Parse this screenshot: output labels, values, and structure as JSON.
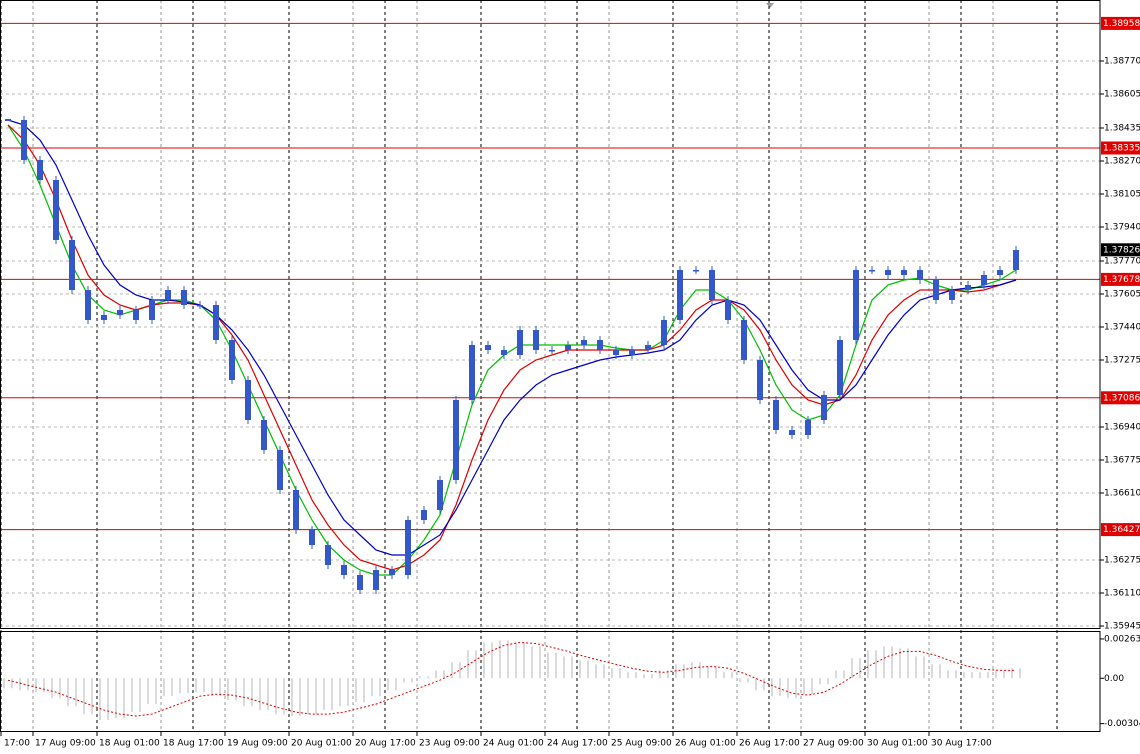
{
  "chart_data": [
    {
      "type": "candlestick",
      "color": "#3458c8",
      "values": [
        1.38475,
        1.38275,
        1.38175,
        1.37875,
        1.37625,
        1.37475,
        1.375,
        1.37525,
        1.37475,
        1.37575,
        1.37625,
        1.3755,
        1.3755,
        1.37375,
        1.37175,
        1.36975,
        1.36825,
        1.36625,
        1.36425,
        1.3635,
        1.3625,
        1.362,
        1.36125,
        1.36225,
        1.362,
        1.36475,
        1.36525,
        1.36675,
        1.37075,
        1.3735,
        1.37325,
        1.373,
        1.37425,
        1.37325,
        1.37325,
        1.3735,
        1.37375,
        1.37325,
        1.373,
        1.37325,
        1.3735,
        1.37475,
        1.37725,
        1.37725,
        1.37575,
        1.37475,
        1.37275,
        1.37075,
        1.36925,
        1.369,
        1.36975,
        1.371,
        1.37375,
        1.37725,
        1.37725,
        1.377,
        1.37725,
        1.37675,
        1.37575,
        1.37625,
        1.3765,
        1.377,
        1.37725,
        1.37825
      ],
      "series": [
        {
          "color": "#00c000",
          "values": [
            1.3845,
            1.38325,
            1.3815,
            1.3795,
            1.3775,
            1.376,
            1.37525,
            1.375,
            1.37525,
            1.3755,
            1.37575,
            1.37575,
            1.3755,
            1.37475,
            1.37325,
            1.3715,
            1.36975,
            1.368,
            1.36625,
            1.36475,
            1.3635,
            1.36275,
            1.36225,
            1.362,
            1.362,
            1.36275,
            1.36375,
            1.365,
            1.36775,
            1.3705,
            1.37225,
            1.373,
            1.3735,
            1.3735,
            1.3735,
            1.3735,
            1.3735,
            1.3735,
            1.37335,
            1.37325,
            1.37325,
            1.37375,
            1.37525,
            1.37625,
            1.37625,
            1.37575,
            1.37475,
            1.37325,
            1.3715,
            1.37025,
            1.36975,
            1.37,
            1.371,
            1.3735,
            1.37575,
            1.3765,
            1.37675,
            1.37685,
            1.3765,
            1.37625,
            1.37625,
            1.3765,
            1.37675,
            1.37725
          ]
        },
        {
          "color": "#e00000",
          "values": [
            1.3845,
            1.38375,
            1.3825,
            1.38075,
            1.37875,
            1.377,
            1.376,
            1.3755,
            1.37525,
            1.3755,
            1.3756,
            1.3756,
            1.3755,
            1.375,
            1.374,
            1.37275,
            1.371,
            1.36925,
            1.3675,
            1.36575,
            1.3645,
            1.3635,
            1.36275,
            1.3625,
            1.36225,
            1.3625,
            1.363,
            1.36375,
            1.3655,
            1.36775,
            1.36975,
            1.37125,
            1.37225,
            1.37275,
            1.373,
            1.37325,
            1.37325,
            1.37325,
            1.37325,
            1.37325,
            1.37325,
            1.3735,
            1.37425,
            1.37525,
            1.37575,
            1.37575,
            1.37525,
            1.37425,
            1.37275,
            1.3715,
            1.37075,
            1.3705,
            1.37075,
            1.372,
            1.37375,
            1.375,
            1.37575,
            1.37625,
            1.37625,
            1.37625,
            1.37615,
            1.37625,
            1.3765,
            1.37675
          ]
        },
        {
          "color": "#0000c8",
          "values": [
            1.38475,
            1.3845,
            1.38375,
            1.3825,
            1.38075,
            1.379,
            1.3775,
            1.3765,
            1.376,
            1.37575,
            1.37575,
            1.37565,
            1.3755,
            1.375,
            1.37425,
            1.37325,
            1.372,
            1.3705,
            1.369,
            1.3675,
            1.366,
            1.36475,
            1.364,
            1.36325,
            1.363,
            1.363,
            1.3635,
            1.364,
            1.36525,
            1.36675,
            1.36825,
            1.36975,
            1.37075,
            1.3715,
            1.372,
            1.37225,
            1.3725,
            1.37275,
            1.3729,
            1.373,
            1.3731,
            1.37325,
            1.37375,
            1.37475,
            1.3755,
            1.37575,
            1.3755,
            1.37475,
            1.3735,
            1.37225,
            1.37125,
            1.37075,
            1.37075,
            1.3715,
            1.37275,
            1.374,
            1.375,
            1.37575,
            1.376,
            1.37625,
            1.37635,
            1.3764,
            1.3765,
            1.37675
          ]
        }
      ],
      "levels": [
        1.38958,
        1.38335,
        1.37678,
        1.37086,
        1.36427
      ],
      "level_color": "#e00000",
      "current_price": 1.37826,
      "ylim": [
        1.35935,
        1.39075
      ],
      "yticks": [
        {
          "value": 1.3877,
          "label": "1.38770"
        },
        1.38605,
        1.38435,
        {
          "value": 1.3827,
          "label": "1.38270"
        },
        1.38105,
        {
          "value": 1.3794,
          "label": "1.37940"
        },
        {
          "value": 1.3777,
          "label": "1.37770"
        },
        1.37605,
        {
          "value": 1.3744,
          "label": "1.37440"
        },
        1.37275,
        {
          "value": 1.3694,
          "label": "1.36940"
        },
        1.36775,
        {
          "value": 1.3661,
          "label": "1.36610"
        },
        1.36275,
        {
          "value": 1.3611,
          "label": "1.36110"
        },
        1.35945
      ],
      "grid": true,
      "xlabels": [
        "17:00",
        "17 Aug 09:00",
        "18 Aug 01:00",
        "18 Aug 17:00",
        "19 Aug 09:00",
        "20 Aug 01:00",
        "20 Aug 17:00",
        "23 Aug 09:00",
        "24 Aug 01:00",
        "24 Aug 17:00",
        "25 Aug 09:00",
        "26 Aug 01:00",
        "26 Aug 17:00",
        "27 Aug 09:00",
        "30 Aug 01:00",
        "30 Aug 17:00"
      ]
    },
    {
      "type": "oscillator",
      "series": [
        {
          "color": "#b4b4b4",
          "values": [
            -0.00067,
            -0.0008,
            -0.00093,
            -0.00133,
            -0.00187,
            -0.0024,
            -0.0028,
            -0.00267,
            -0.00227,
            -0.00173,
            -0.0012,
            -0.001,
            -0.00093,
            -0.0012,
            -0.00147,
            -0.00187,
            -0.00213,
            -0.0024,
            -0.00253,
            -0.0024,
            -0.00213,
            -0.00187,
            -0.0016,
            -0.0012,
            -0.0008,
            -0.00027,
            0.00013,
            0.00053,
            0.00107,
            0.00187,
            0.0024,
            0.00253,
            0.0024,
            0.00213,
            0.00173,
            0.00147,
            0.0012,
            0.00093,
            0.00067,
            0.0004,
            0.00027,
            0.00053,
            0.00093,
            0.00107,
            0.0008,
            0.0004,
            -0.00027,
            -0.0008,
            -0.0012,
            -0.00133,
            -0.00107,
            -0.0004,
            0.00053,
            0.00133,
            0.00187,
            0.00213,
            0.002,
            0.00147,
            0.00093,
            0.00053,
            0.0004,
            0.0004,
            0.00053,
            0.00067
          ]
        },
        {
          "color": "#e00000",
          "values": [
            -0.00013,
            -0.0004,
            -0.00067,
            -0.00093,
            -0.00133,
            -0.00173,
            -0.00213,
            -0.0024,
            -0.00253,
            -0.0024,
            -0.002,
            -0.0016,
            -0.0012,
            -0.00107,
            -0.00113,
            -0.00133,
            -0.00167,
            -0.002,
            -0.00227,
            -0.0024,
            -0.0024,
            -0.00227,
            -0.002,
            -0.00173,
            -0.00133,
            -0.00093,
            -0.00053,
            -0.00013,
            0.0004,
            0.00107,
            0.00173,
            0.0022,
            0.0024,
            0.00233,
            0.00207,
            0.0018,
            0.00147,
            0.0012,
            0.00093,
            0.00067,
            0.00047,
            0.0004,
            0.00053,
            0.00073,
            0.0008,
            0.00067,
            0.00033,
            -0.00013,
            -0.0006,
            -0.001,
            -0.00113,
            -0.00093,
            -0.0004,
            0.00027,
            0.00093,
            0.00147,
            0.0018,
            0.0018,
            0.00153,
            0.00113,
            0.0008,
            0.0006,
            0.00053,
            0.00053
          ]
        }
      ],
      "ylim": [
        -0.0036,
        0.0031
      ],
      "yticks": [
        0.002635,
        {
          "value": 0,
          "label": "0.00"
        },
        -0.00304
      ]
    }
  ]
}
